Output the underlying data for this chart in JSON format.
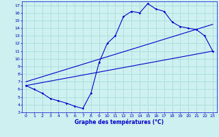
{
  "xlabel": "Graphe des températures (°C)",
  "bg_color": "#cef0f0",
  "line_color": "#0000cc",
  "grid_color": "#a8dcdc",
  "curve1_x": [
    0,
    1,
    2,
    3,
    4,
    5,
    6,
    7,
    8,
    9,
    10,
    11,
    12,
    13,
    14,
    15,
    16,
    17,
    18,
    19,
    20,
    21,
    22,
    23
  ],
  "curve1_y": [
    6.5,
    6.0,
    5.5,
    4.8,
    4.5,
    4.2,
    3.8,
    3.5,
    5.5,
    9.5,
    12.0,
    13.0,
    15.5,
    16.2,
    16.0,
    17.2,
    16.5,
    16.2,
    14.8,
    14.2,
    14.0,
    13.8,
    13.0,
    11.0
  ],
  "trend1_x": [
    0,
    23
  ],
  "trend1_y": [
    6.5,
    11.0
  ],
  "trend2_x": [
    0,
    23
  ],
  "trend2_y": [
    7.0,
    14.5
  ],
  "xlim": [
    -0.5,
    23.5
  ],
  "ylim": [
    3,
    17.5
  ],
  "xticks": [
    0,
    1,
    2,
    3,
    4,
    5,
    6,
    7,
    8,
    9,
    10,
    11,
    12,
    13,
    14,
    15,
    16,
    17,
    18,
    19,
    20,
    21,
    22,
    23
  ],
  "yticks": [
    3,
    4,
    5,
    6,
    7,
    8,
    9,
    10,
    11,
    12,
    13,
    14,
    15,
    16,
    17
  ]
}
